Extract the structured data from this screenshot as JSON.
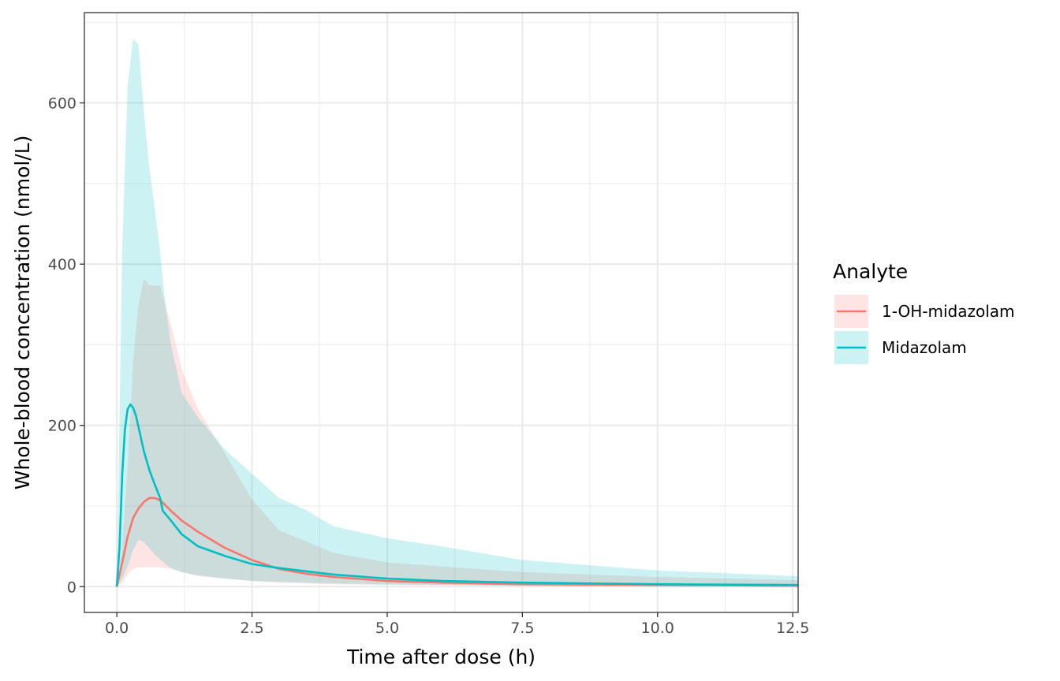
{
  "chart_data": {
    "type": "line",
    "xlabel": "Time after dose (h)",
    "ylabel": "Whole-blood concentration (nmol/L)",
    "xlim": [
      -0.6,
      12.6
    ],
    "ylim": [
      -32,
      712
    ],
    "x_ticks": [
      0,
      2.5,
      5,
      7.5,
      10,
      12.5
    ],
    "x_tick_labels": [
      "0.0",
      "2.5",
      "5.0",
      "7.5",
      "10.0",
      "12.5"
    ],
    "y_ticks": [
      0,
      200,
      400,
      600
    ],
    "y_tick_labels": [
      "0",
      "200",
      "400",
      "600"
    ],
    "grid": true,
    "legend": {
      "title": "Analyte",
      "position": "right",
      "entries": [
        "1-OH-midazolam",
        "Midazolam"
      ]
    },
    "series": [
      {
        "name": "1-OH-midazolam",
        "color": "#F8766D",
        "line": [
          [
            0,
            0
          ],
          [
            0.1,
            30
          ],
          [
            0.2,
            62
          ],
          [
            0.3,
            85
          ],
          [
            0.4,
            97
          ],
          [
            0.5,
            105
          ],
          [
            0.6,
            110
          ],
          [
            0.7,
            110
          ],
          [
            0.8,
            107
          ],
          [
            0.9,
            101
          ],
          [
            1.0,
            94
          ],
          [
            1.2,
            82
          ],
          [
            1.5,
            68
          ],
          [
            2.0,
            48
          ],
          [
            2.5,
            33
          ],
          [
            3.0,
            22
          ],
          [
            3.5,
            16
          ],
          [
            4.0,
            12
          ],
          [
            5.0,
            7
          ],
          [
            6.0,
            5
          ],
          [
            7.5,
            3
          ],
          [
            10.0,
            2
          ],
          [
            12.6,
            1
          ]
        ],
        "ribbon": [
          [
            0,
            0,
            0
          ],
          [
            0.1,
            5,
            50
          ],
          [
            0.2,
            15,
            150
          ],
          [
            0.3,
            22,
            280
          ],
          [
            0.4,
            24,
            350
          ],
          [
            0.5,
            24,
            382
          ],
          [
            0.6,
            24,
            374
          ],
          [
            0.8,
            24,
            373
          ],
          [
            1.0,
            22,
            325
          ],
          [
            1.2,
            18,
            270
          ],
          [
            1.5,
            13,
            220
          ],
          [
            2.0,
            10,
            165
          ],
          [
            2.5,
            7,
            108
          ],
          [
            3.0,
            5,
            70
          ],
          [
            4.0,
            3,
            42
          ],
          [
            5.0,
            2,
            30
          ],
          [
            7.5,
            1,
            18
          ],
          [
            10.0,
            0,
            12
          ],
          [
            12.6,
            0,
            8
          ]
        ]
      },
      {
        "name": "Midazolam",
        "color": "#00BFC4",
        "line": [
          [
            0,
            0
          ],
          [
            0.05,
            50
          ],
          [
            0.1,
            140
          ],
          [
            0.15,
            195
          ],
          [
            0.2,
            220
          ],
          [
            0.25,
            226
          ],
          [
            0.3,
            222
          ],
          [
            0.35,
            213
          ],
          [
            0.4,
            198
          ],
          [
            0.5,
            168
          ],
          [
            0.6,
            145
          ],
          [
            0.7,
            127
          ],
          [
            0.8,
            110
          ],
          [
            0.85,
            94
          ],
          [
            1.0,
            82
          ],
          [
            1.2,
            65
          ],
          [
            1.5,
            50
          ],
          [
            2.0,
            38
          ],
          [
            2.5,
            28
          ],
          [
            3.0,
            23
          ],
          [
            3.5,
            19
          ],
          [
            4.0,
            15
          ],
          [
            5.0,
            10
          ],
          [
            6.0,
            7
          ],
          [
            7.5,
            5
          ],
          [
            10.0,
            3
          ],
          [
            12.6,
            2
          ]
        ],
        "ribbon": [
          [
            0,
            0,
            0
          ],
          [
            0.1,
            10,
            420
          ],
          [
            0.2,
            25,
            620
          ],
          [
            0.3,
            45,
            680
          ],
          [
            0.4,
            58,
            672
          ],
          [
            0.5,
            55,
            590
          ],
          [
            0.6,
            48,
            520
          ],
          [
            0.7,
            40,
            470
          ],
          [
            0.8,
            34,
            415
          ],
          [
            0.9,
            28,
            350
          ],
          [
            1.0,
            23,
            300
          ],
          [
            1.2,
            18,
            240
          ],
          [
            1.5,
            14,
            210
          ],
          [
            2.0,
            10,
            170
          ],
          [
            2.5,
            7,
            140
          ],
          [
            3.0,
            6,
            110
          ],
          [
            3.5,
            5,
            95
          ],
          [
            4.0,
            4,
            75
          ],
          [
            5.0,
            3,
            60
          ],
          [
            6.0,
            2,
            50
          ],
          [
            7.5,
            1,
            33
          ],
          [
            10.0,
            1,
            20
          ],
          [
            12.6,
            0,
            13
          ]
        ]
      }
    ]
  }
}
